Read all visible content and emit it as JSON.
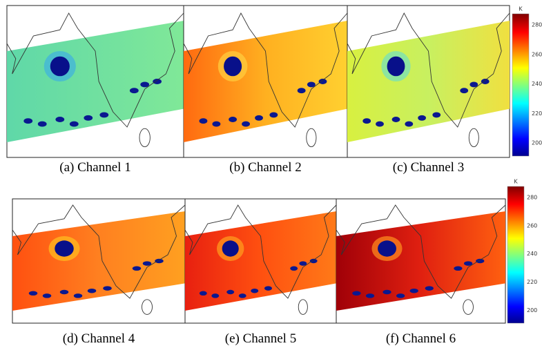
{
  "panels": [
    {
      "caption": "(a) Channel 1"
    },
    {
      "caption": "(b) Channel 2"
    },
    {
      "caption": "(c) Channel 3"
    },
    {
      "caption": "(d) Channel 4"
    },
    {
      "caption": "(e) Channel 5"
    },
    {
      "caption": "(f) Channel 6"
    }
  ],
  "colorbars": [
    {
      "unit": "K",
      "ticks": [
        280,
        260,
        240,
        220,
        200
      ]
    },
    {
      "unit": "K",
      "ticks": [
        280,
        260,
        240,
        220,
        200
      ]
    }
  ]
}
